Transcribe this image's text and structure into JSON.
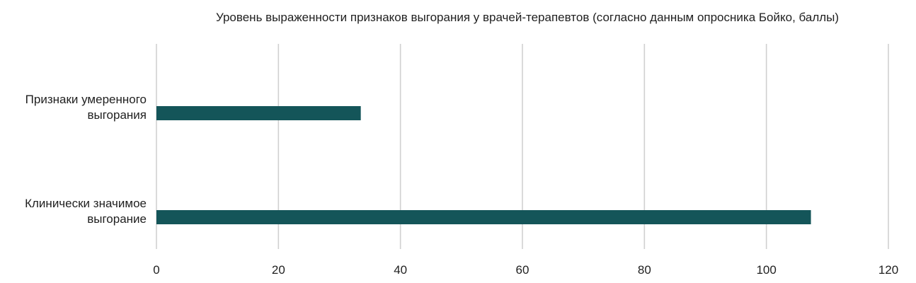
{
  "chart_data": {
    "type": "bar",
    "orientation": "horizontal",
    "title": "Уровень выраженности признаков выгорания у врачей-терапевтов (согласно данным опросника Бойко, баллы)",
    "categories": [
      [
        "Признаки умеренного",
        "выгорания"
      ],
      [
        "Клинически значимое",
        "выгорание"
      ]
    ],
    "values": [
      33.5,
      107.3
    ],
    "xlim": [
      0,
      120
    ],
    "x_ticks": [
      0,
      20,
      40,
      60,
      80,
      100,
      120
    ],
    "grid": true,
    "bar_color": "#145559",
    "grid_color": "#d0d0d0"
  }
}
